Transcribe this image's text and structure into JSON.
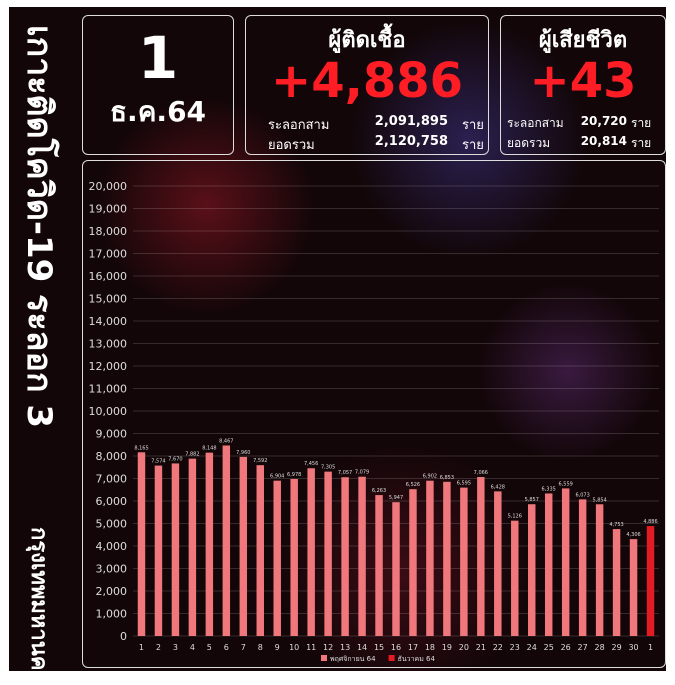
{
  "side": {
    "title": "เกาะติดโควิด-19 ระลอก 3",
    "place": "กรุงเทพมหานคร"
  },
  "date": {
    "day": "1",
    "month": "ธ.ค.64"
  },
  "infected": {
    "title": "ผู้ติดเชื้อ",
    "today": "+4,886",
    "wave_label": "ระลอกสาม",
    "wave_value": "2,091,895",
    "total_label": "ยอดรวม",
    "total_value": "2,120,758",
    "unit": "ราย"
  },
  "deaths": {
    "title": "ผู้เสียชีวิต",
    "today": "+43",
    "wave_label": "ระลอกสาม",
    "wave_value": "20,720",
    "total_label": "ยอดรวม",
    "total_value": "20,814",
    "unit": "ราย"
  },
  "chart_data": {
    "type": "bar",
    "categories": [
      "1",
      "2",
      "3",
      "4",
      "5",
      "6",
      "7",
      "8",
      "9",
      "10",
      "11",
      "12",
      "13",
      "14",
      "15",
      "16",
      "17",
      "18",
      "19",
      "20",
      "21",
      "22",
      "23",
      "24",
      "25",
      "26",
      "27",
      "28",
      "29",
      "30",
      "1"
    ],
    "series": [
      {
        "name": "พฤศจิกายน 64",
        "color": "#f0787c",
        "values": [
          8165,
          7574,
          7670,
          7882,
          8148,
          8467,
          7960,
          7592,
          6904,
          6978,
          7456,
          7305,
          7057,
          7079,
          6263,
          5947,
          6526,
          6902,
          6853,
          6595,
          7066,
          6428,
          5126,
          5857,
          6335,
          6559,
          6073,
          5854,
          4753,
          4306,
          null
        ],
        "value_labels": [
          "8,165",
          "7,574",
          "7,670",
          "7,882",
          "8,148",
          "8,467",
          "7,960",
          "7,592",
          "6,904",
          "6,978",
          "7,456",
          "7,305",
          "7,057",
          "7,079",
          "6,263",
          "5,947",
          "6,526",
          "6,902",
          "6,853",
          "6,595",
          "7,066",
          "6,428",
          "5,126",
          "5,857",
          "6,335",
          "6,559",
          "6,073",
          "5,854",
          "4,753",
          "4,306",
          null
        ]
      },
      {
        "name": "ธันวาคม 64",
        "color": "#e31b23",
        "values": [
          null,
          null,
          null,
          null,
          null,
          null,
          null,
          null,
          null,
          null,
          null,
          null,
          null,
          null,
          null,
          null,
          null,
          null,
          null,
          null,
          null,
          null,
          null,
          null,
          null,
          null,
          null,
          null,
          null,
          null,
          4886
        ],
        "value_labels": [
          null,
          null,
          null,
          null,
          null,
          null,
          null,
          null,
          null,
          null,
          null,
          null,
          null,
          null,
          null,
          null,
          null,
          null,
          null,
          null,
          null,
          null,
          null,
          null,
          null,
          null,
          null,
          null,
          null,
          null,
          "4,886"
        ]
      }
    ],
    "ylim": [
      0,
      20000
    ],
    "yticks": [
      0,
      {
        "value": 1000,
        "label": "1,000"
      },
      {
        "value": 2000,
        "label": "2,000"
      },
      {
        "value": 3000,
        "label": "3,000"
      },
      {
        "value": 4000,
        "label": "4,000"
      },
      {
        "value": 5000,
        "label": "5,000"
      },
      {
        "value": 6000,
        "label": "6,000"
      },
      {
        "value": 7000,
        "label": "7,000"
      },
      {
        "value": 8000,
        "label": "8,000"
      },
      {
        "value": 9000,
        "label": "9,000"
      },
      {
        "value": 10000,
        "label": "10,000"
      },
      {
        "value": 11000,
        "label": "11,000"
      },
      {
        "value": 12000,
        "label": "12,000"
      },
      {
        "value": 13000,
        "label": "13,000"
      },
      {
        "value": 14000,
        "label": "14,000"
      },
      {
        "value": 15000,
        "label": "15,000"
      },
      {
        "value": 16000,
        "label": "16,000"
      },
      {
        "value": 17000,
        "label": "17,000"
      },
      {
        "value": 18000,
        "label": "18,000"
      },
      {
        "value": 19000,
        "label": "19,000"
      },
      {
        "value": 20000,
        "label": "20,000"
      }
    ],
    "grid": true,
    "legend": "bottom"
  }
}
